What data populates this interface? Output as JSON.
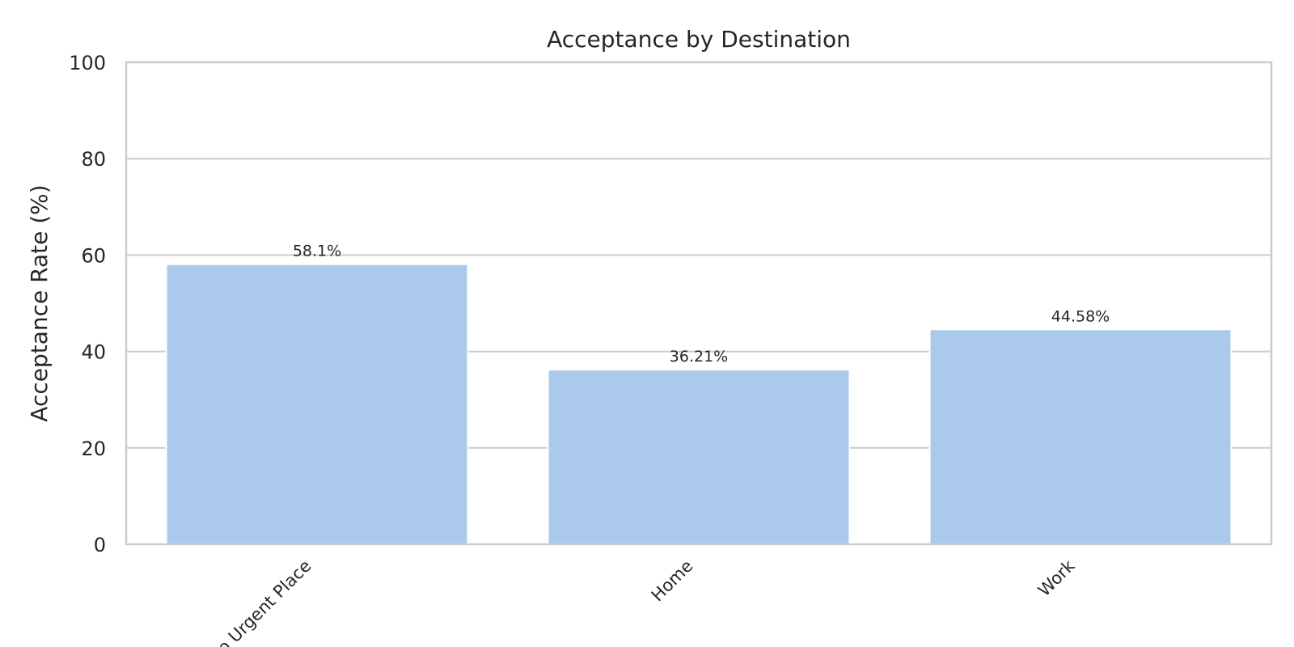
{
  "chart_data": {
    "type": "bar",
    "title": "Acceptance by Destination",
    "xlabel": "",
    "ylabel": "Acceptance Rate (%)",
    "categories": [
      "No Urgent Place",
      "Home",
      "Work"
    ],
    "values": [
      58.1,
      36.21,
      44.58
    ],
    "data_labels": [
      "58.1%",
      "36.21%",
      "44.58%"
    ],
    "ylim": [
      0,
      100
    ],
    "yticks": [
      "0",
      "20",
      "40",
      "60",
      "80",
      "100"
    ],
    "grid": "horizontal",
    "colors": {
      "bar": "#abc9eb",
      "grid": "#cccccc",
      "spine": "#cccccc",
      "text": "#262626",
      "background": "#ffffff"
    }
  }
}
